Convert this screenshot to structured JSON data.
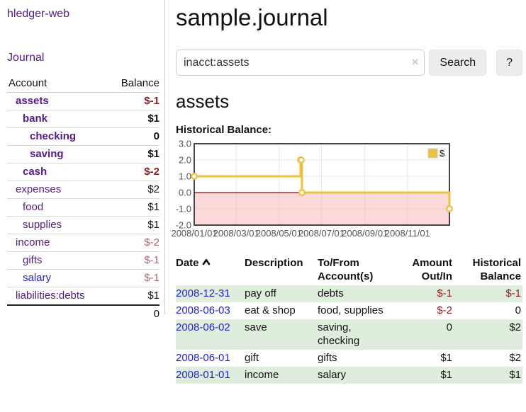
{
  "sidebar": {
    "app_title": "hledger-web",
    "journal_link": "Journal",
    "accounts_table": {
      "headers": [
        "Account",
        "Balance"
      ],
      "rows": [
        {
          "account": "assets",
          "balance": "$-1",
          "indent": 1,
          "bold": true,
          "link_color": "purple",
          "balance_style": "negative-strong"
        },
        {
          "account": "bank",
          "balance": "$1",
          "indent": 2,
          "bold": true,
          "link_color": "purple",
          "balance_style": "normal"
        },
        {
          "account": "checking",
          "balance": "0",
          "indent": 3,
          "bold": true,
          "link_color": "purple",
          "balance_style": "normal"
        },
        {
          "account": "saving",
          "balance": "$1",
          "indent": 3,
          "bold": true,
          "link_color": "purple",
          "balance_style": "normal"
        },
        {
          "account": "cash",
          "balance": "$-2",
          "indent": 2,
          "bold": true,
          "link_color": "purple",
          "balance_style": "negative-strong"
        },
        {
          "account": "expenses",
          "balance": "$2",
          "indent": 1,
          "bold": false,
          "link_color": "purple",
          "balance_style": "normal"
        },
        {
          "account": "food",
          "balance": "$1",
          "indent": 2,
          "bold": false,
          "link_color": "purple",
          "balance_style": "normal"
        },
        {
          "account": "supplies",
          "balance": "$1",
          "indent": 2,
          "bold": false,
          "link_color": "purple",
          "balance_style": "normal"
        },
        {
          "account": "income",
          "balance": "$-2",
          "indent": 1,
          "bold": false,
          "link_color": "purple",
          "balance_style": "negative-muted"
        },
        {
          "account": "gifts",
          "balance": "$-1",
          "indent": 2,
          "bold": false,
          "link_color": "purple",
          "balance_style": "negative-muted"
        },
        {
          "account": "salary",
          "balance": "$-1",
          "indent": 2,
          "bold": false,
          "link_color": "blue",
          "balance_style": "negative-muted"
        },
        {
          "account": "liabilities:debts",
          "balance": "$1",
          "indent": 1,
          "bold": false,
          "link_color": "purple",
          "balance_style": "normal"
        }
      ],
      "total": "0"
    }
  },
  "main": {
    "title": "sample.journal",
    "search": {
      "value": "inacct:assets",
      "clear_icon": "×",
      "button_label": "Search",
      "help_button_label": "?"
    },
    "account_heading": "assets",
    "chart_label": "Historical Balance:"
  },
  "chart_data": {
    "type": "line-steps",
    "title": "Historical Balance:",
    "series": [
      {
        "name": "$",
        "color": "#edc240",
        "points": [
          [
            "2008-01-01",
            1
          ],
          [
            "2008-06-01",
            2
          ],
          [
            "2008-06-02",
            2
          ],
          [
            "2008-06-03",
            0
          ],
          [
            "2008-12-31",
            -1
          ]
        ]
      }
    ],
    "x_range": [
      "2008-01-01",
      "2008-12-31"
    ],
    "ylim": [
      -2,
      3
    ],
    "y_tick_labels": [
      "3.0",
      "2.0",
      "1.0",
      "0.0",
      "-1.0",
      "-2.0"
    ],
    "y_tick_values": [
      3,
      2,
      1,
      0,
      -1,
      -2
    ],
    "x_ticks": [
      "2008/01/01",
      "2008/03/01",
      "2008/05/01",
      "2008/07/01",
      "2008/09/01",
      "2008/11/01"
    ],
    "grid": true,
    "legend_position": "top-right",
    "legend_label": "$",
    "negative_region_fill": "rgba(248,180,180,0.5)",
    "zero_line_color": "#8b0000",
    "border_color": "#444444",
    "gridline_color": "#e7e7e7",
    "tick_label_color": "#545454"
  },
  "register_table": {
    "headers": {
      "date": "Date",
      "description": "Description",
      "accounts": "To/From Account(s)",
      "amount": "Amount Out/In",
      "balance": "Historical Balance"
    },
    "rows": [
      {
        "date": "2008-12-31",
        "description": "pay off",
        "accounts": "debts",
        "amount": "$-1",
        "balance": "$-1",
        "amount_style": "negative-strong",
        "balance_style": "negative-strong",
        "shaded": true
      },
      {
        "date": "2008-06-03",
        "description": "eat & shop",
        "accounts": "food, supplies",
        "amount": "$-2",
        "balance": "0",
        "amount_style": "negative-strong",
        "balance_style": "normal",
        "shaded": false
      },
      {
        "date": "2008-06-02",
        "description": "save",
        "accounts": "saving, checking",
        "amount": "0",
        "balance": "$2",
        "amount_style": "normal",
        "balance_style": "normal",
        "shaded": true
      },
      {
        "date": "2008-06-01",
        "description": "gift",
        "accounts": "gifts",
        "amount": "$1",
        "balance": "$2",
        "amount_style": "normal",
        "balance_style": "normal",
        "shaded": false
      },
      {
        "date": "2008-01-01",
        "description": "income",
        "accounts": "salary",
        "amount": "$1",
        "balance": "$1",
        "amount_style": "normal",
        "balance_style": "normal",
        "shaded": true
      }
    ]
  },
  "colors": {
    "link_purple": "#551a8b",
    "link_blue": "#2222dd",
    "negative_strong": "#8f1d1d",
    "negative_muted": "#b5646f",
    "row_green": "#dfeedc",
    "chart_line_gold": "#edc240",
    "chart_zero_line": "#8b0000"
  }
}
